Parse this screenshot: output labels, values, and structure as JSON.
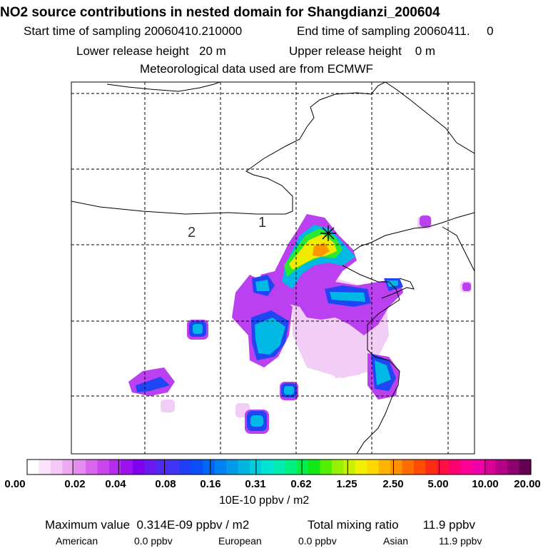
{
  "header": {
    "title": "NO2 source contributions in nested domain for Shangdianzi_200604",
    "start_label": "Start time of sampling 20060410.210000",
    "end_label": "End time of sampling 20060411.     0",
    "lower_label": "Lower release height   20 m",
    "upper_label": "Upper release height    0 m",
    "met_label": "Meteorological data used are from ECMWF"
  },
  "map": {
    "region_labels": [
      "1",
      "2"
    ],
    "receptor_marker": "star-marker"
  },
  "colorbar": {
    "ticks": [
      "0.00",
      "0.02",
      "0.04",
      "0.08",
      "0.16",
      "0.31",
      "0.62",
      "1.25",
      "2.50",
      "5.00",
      "10.00",
      "20.00"
    ],
    "unit": "10E-10 ppbv / m2",
    "colors": [
      "#ffffff",
      "#fbe4fb",
      "#f5c8f5",
      "#eeaaf0",
      "#e58cef",
      "#d966ee",
      "#c945ec",
      "#b52cec",
      "#9b12ee",
      "#8000f0",
      "#6a1af0",
      "#4f2af0",
      "#3f35f2",
      "#1f3ef5",
      "#0a4ef8",
      "#0066f8",
      "#0082f2",
      "#009ae8",
      "#00b4e2",
      "#00cede",
      "#00e4d4",
      "#00ecb0",
      "#00f080",
      "#00f048",
      "#10e818",
      "#50f000",
      "#98f000",
      "#c8f000",
      "#f0f000",
      "#ffd800",
      "#ffb400",
      "#ff9000",
      "#ff6c00",
      "#ff4c00",
      "#ff2c14",
      "#ff1040",
      "#ff0070",
      "#ff0094",
      "#f000a8",
      "#d80096",
      "#b40084",
      "#8c0070",
      "#640050"
    ]
  },
  "stats": {
    "max_label": "Maximum value  0.314E-09 ppbv / m2",
    "total_label": "Total mixing ratio",
    "total_value": "11.9 ppbv",
    "american_label": "American",
    "american_value": "0.0 ppbv",
    "european_label": "European",
    "european_value": "0.0 ppbv",
    "asian_label": "Asian",
    "asian_value": "11.9 ppbv"
  }
}
